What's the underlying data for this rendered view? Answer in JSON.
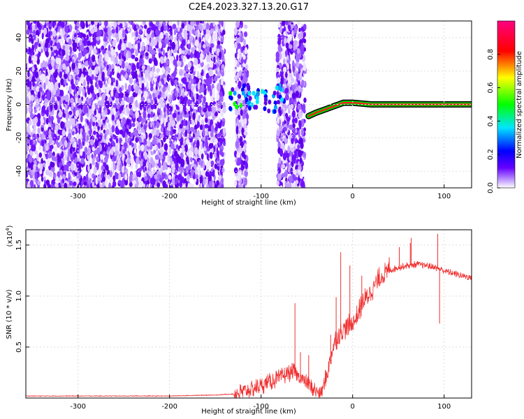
{
  "figure": {
    "title": "C2E4.2023.327.13.20.G17"
  },
  "chart_data": [
    {
      "type": "heatmap",
      "title": "C2E4.2023.327.13.20.G17",
      "xlabel": "Height of straight line (km)",
      "ylabel": "Frequency (Hz)",
      "xlim": [
        -357,
        130
      ],
      "ylim": [
        -50,
        50
      ],
      "x_ticks": [
        -300,
        -200,
        -100,
        0,
        100
      ],
      "y_ticks": [
        -40,
        -20,
        0,
        20,
        40
      ],
      "colorbar": {
        "label": "Normalized spectral amplitude",
        "range": [
          0,
          1
        ],
        "ticks": [
          "0.0",
          "0.2",
          "0.4",
          "0.6",
          "0.8"
        ],
        "colormap": "rainbow",
        "colors": [
          "#ffffff",
          "#6600ff",
          "#0000ff",
          "#00e5ff",
          "#00ff00",
          "#ffff00",
          "#ff0000",
          "#ff0080"
        ]
      },
      "noise_regions_km": [
        [
          -357,
          -140
        ],
        [
          -128,
          -115
        ],
        [
          -82,
          -52
        ]
      ],
      "tracked_signal": [
        {
          "x": -128,
          "y": 3
        },
        {
          "x": -118,
          "y": 6
        },
        {
          "x": -110,
          "y": 2
        },
        {
          "x": -100,
          "y": 4
        },
        {
          "x": -90,
          "y": 1
        },
        {
          "x": -80,
          "y": 6
        },
        {
          "x": -48,
          "y": -7
        },
        {
          "x": -40,
          "y": -5
        },
        {
          "x": -30,
          "y": -3
        },
        {
          "x": -20,
          "y": -1
        },
        {
          "x": -10,
          "y": 1
        },
        {
          "x": 0,
          "y": 1
        },
        {
          "x": 20,
          "y": 0
        },
        {
          "x": 60,
          "y": 0
        },
        {
          "x": 100,
          "y": 0
        },
        {
          "x": 130,
          "y": 0
        }
      ],
      "grid": true
    },
    {
      "type": "line",
      "xlabel": "Height of straight line (km)",
      "ylabel": "SNR (10 * v/v)",
      "y_multiplier": "(x10",
      "y_multiplier_exp": "4",
      "xlim": [
        -357,
        130
      ],
      "ylim": [
        0,
        1.65
      ],
      "x_ticks": [
        -300,
        -200,
        -100,
        0,
        100
      ],
      "y_ticks": [
        0.5,
        1.0,
        1.5
      ],
      "y_tick_labels": [
        "0.5",
        "1.0",
        "1.5"
      ],
      "line_color": "#f03030",
      "grid": true,
      "series": [
        {
          "x": [
            -357,
            -300,
            -250,
            -200,
            -150,
            -130,
            -120,
            -110,
            -100,
            -90,
            -85,
            -80,
            -75,
            -70,
            -65,
            -60,
            -55,
            -50,
            -45,
            -40,
            -35,
            -30,
            -25,
            -22,
            -20,
            -17,
            -14,
            -10,
            -5,
            0,
            5,
            10,
            20,
            30,
            40,
            50,
            60,
            70,
            80,
            90,
            100,
            110,
            120,
            130
          ],
          "y": [
            0.02,
            0.02,
            0.02,
            0.02,
            0.03,
            0.04,
            0.06,
            0.09,
            0.12,
            0.16,
            0.18,
            0.2,
            0.22,
            0.24,
            0.26,
            0.22,
            0.18,
            0.14,
            0.1,
            0.07,
            0.05,
            0.15,
            0.35,
            0.48,
            0.55,
            0.6,
            0.62,
            0.68,
            0.7,
            0.73,
            0.8,
            0.92,
            1.05,
            1.18,
            1.25,
            1.28,
            1.3,
            1.31,
            1.3,
            1.28,
            1.25,
            1.22,
            1.2,
            1.18
          ]
        }
      ],
      "spikes": [
        {
          "x": -63,
          "y": 0.93
        },
        {
          "x": -57,
          "y": 0.45
        },
        {
          "x": -48,
          "y": 0.42
        },
        {
          "x": -24,
          "y": 0.62
        },
        {
          "x": -18,
          "y": 0.99
        },
        {
          "x": -13,
          "y": 1.43
        },
        {
          "x": -3,
          "y": 1.3
        },
        {
          "x": 10,
          "y": 1.2
        },
        {
          "x": 40,
          "y": 1.38
        },
        {
          "x": 51,
          "y": 1.48
        },
        {
          "x": 63,
          "y": 1.52
        },
        {
          "x": 64,
          "y": 1.57
        },
        {
          "x": 93,
          "y": 1.61
        },
        {
          "x": 95,
          "y": 0.73
        }
      ]
    }
  ]
}
